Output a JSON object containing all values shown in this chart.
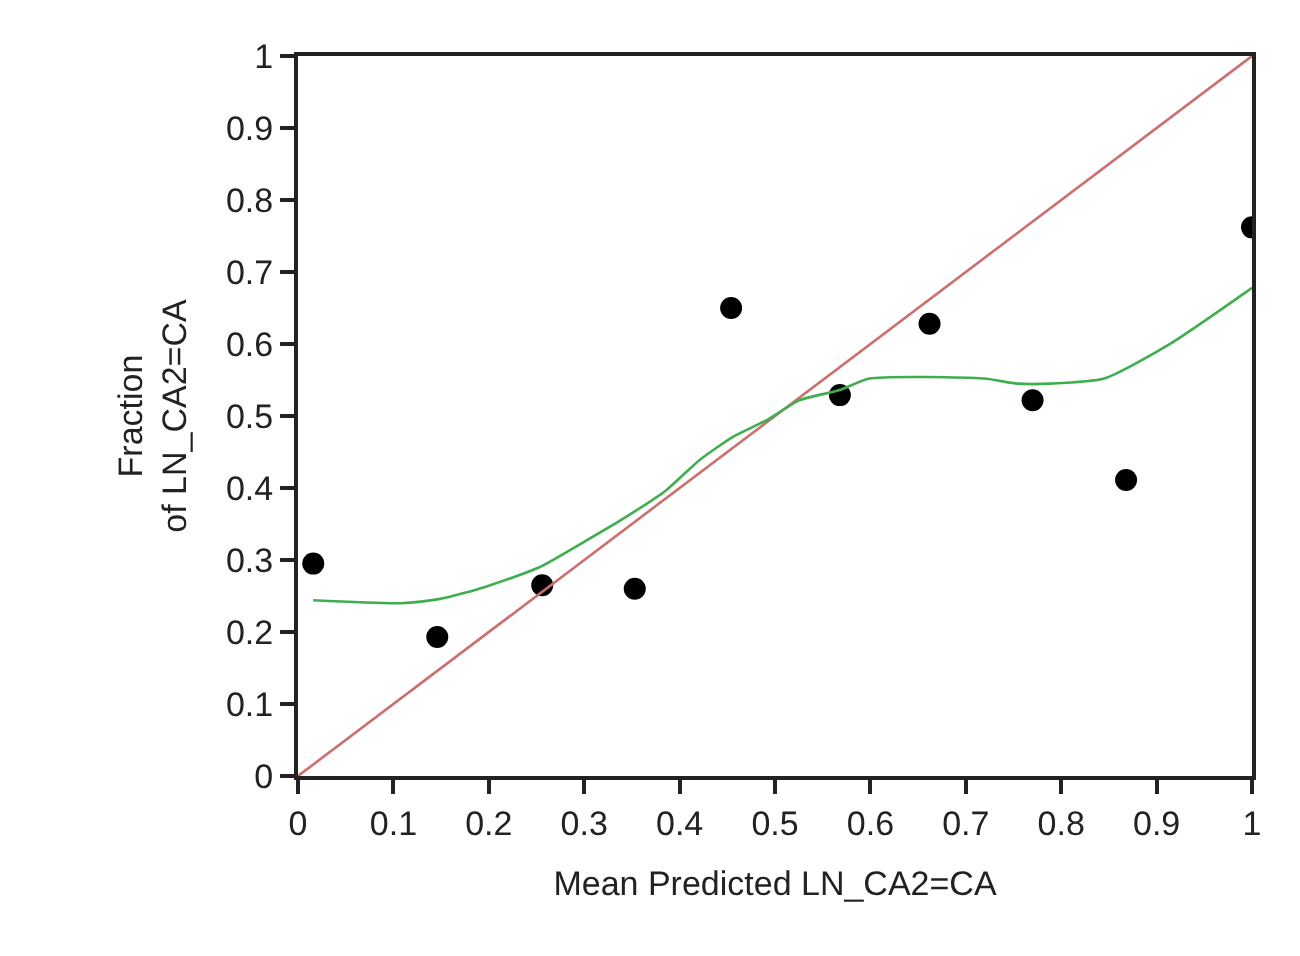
{
  "chart_data": {
    "type": "scatter",
    "xlabel": "Mean Predicted LN_CA2=CA",
    "ylabel": "Fraction\nof LN_CA2=CA",
    "x": [
      0.016,
      0.146,
      0.256,
      0.353,
      0.454,
      0.568,
      0.662,
      0.77,
      0.868,
      1.0
    ],
    "xlim": [
      0,
      1
    ],
    "ylim": [
      0,
      1
    ],
    "xticks": [
      0,
      0.1,
      0.2,
      0.3,
      0.4,
      0.5,
      0.6,
      0.7,
      0.8,
      0.9,
      1
    ],
    "yticks": [
      0,
      0.1,
      0.2,
      0.3,
      0.4,
      0.5,
      0.6,
      0.7,
      0.8,
      0.9,
      1
    ],
    "marker": "circle",
    "series": [
      {
        "color": "#000000",
        "values": [
          0.295,
          0.193,
          0.265,
          0.26,
          0.65,
          0.529,
          0.628,
          0.522,
          0.411,
          0.762
        ]
      },
      {
        "type": "line",
        "color": "#cc6f6f",
        "marker": "none",
        "x": [
          0,
          1
        ],
        "values": [
          0,
          1
        ]
      },
      {
        "type": "line",
        "color": "#3fae4f",
        "marker": "none",
        "x": [
          0.016,
          0.107,
          0.149,
          0.197,
          0.253,
          0.302,
          0.344,
          0.386,
          0.421,
          0.456,
          0.491,
          0.526,
          0.568,
          0.599,
          0.719,
          0.754,
          0.789,
          0.845,
          0.915,
          1.0
        ],
        "values": [
          0.244,
          0.24,
          0.246,
          0.263,
          0.29,
          0.327,
          0.36,
          0.397,
          0.439,
          0.471,
          0.494,
          0.522,
          0.536,
          0.552,
          0.552,
          0.545,
          0.545,
          0.552,
          0.601,
          0.678
        ]
      }
    ]
  }
}
